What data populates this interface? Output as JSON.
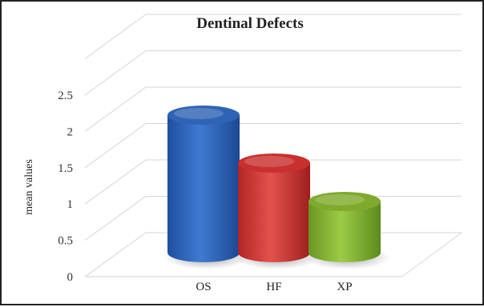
{
  "chart_data": {
    "type": "bar",
    "title": "Dentinal Defects",
    "xlabel": "",
    "ylabel": "mean values",
    "categories": [
      "OS",
      "HF",
      "XP"
    ],
    "values": [
      2.15,
      1.4,
      0.8
    ],
    "ylim": [
      0,
      2.5
    ],
    "yticks": [
      0,
      0.5,
      1,
      1.5,
      2,
      2.5
    ],
    "ytick_labels": [
      "0",
      "0.5",
      "1",
      "1.5",
      "2",
      "2.5"
    ],
    "grid": true,
    "style": "3d-cylinder",
    "colors": [
      "#2f63b4",
      "#c8302e",
      "#7faa2c"
    ]
  }
}
